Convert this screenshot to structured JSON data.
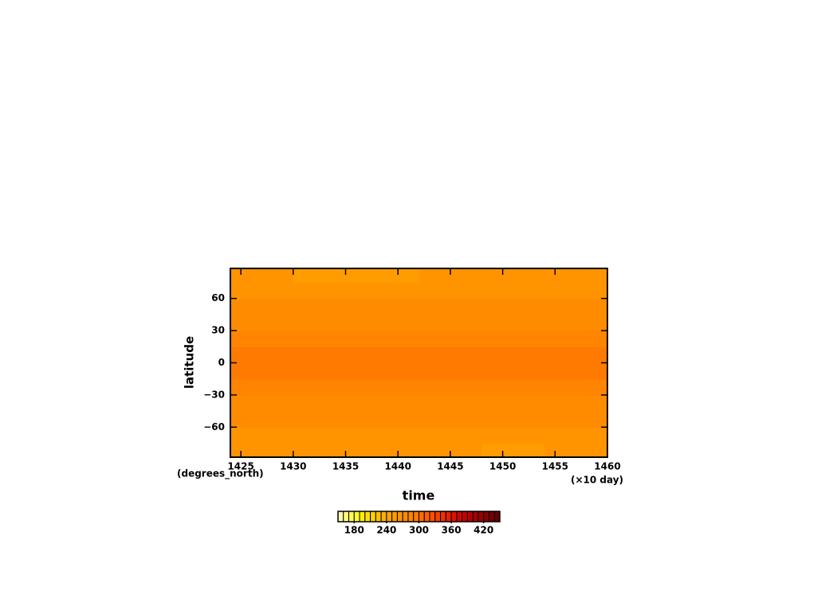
{
  "chart_data": {
    "type": "contour",
    "x_label": "time",
    "x_units": "(×10 day)",
    "y_label": "latitude",
    "y_units": "(degrees_north)",
    "xlim": [
      1424,
      1460
    ],
    "xticks": [
      1425,
      1430,
      1435,
      1440,
      1445,
      1450,
      1455,
      1460
    ],
    "ylim": [
      -88,
      88
    ],
    "yticks": [
      {
        "value": -60,
        "label": "−60"
      },
      {
        "value": -30,
        "label": "−30"
      },
      0,
      30,
      60
    ],
    "x": [
      1427,
      1433,
      1439,
      1445,
      1451,
      1457
    ],
    "y": [
      -82.5,
      -67.5,
      -52.5,
      -37.5,
      -22.5,
      -7.5,
      7.5,
      22.5,
      37.5,
      52.5,
      67.5,
      82.5
    ],
    "z": [
      [
        262,
        262,
        262,
        262,
        258,
        262
      ],
      [
        266,
        266,
        266,
        266,
        266,
        266
      ],
      [
        272,
        272,
        272,
        272,
        274,
        272
      ],
      [
        276,
        276,
        276,
        276,
        276,
        276
      ],
      [
        284,
        284,
        284,
        284,
        284,
        284
      ],
      [
        292,
        292,
        292,
        292,
        292,
        292
      ],
      [
        292,
        292,
        292,
        292,
        292,
        292
      ],
      [
        284,
        284,
        284,
        284,
        284,
        284
      ],
      [
        276,
        276,
        276,
        276,
        276,
        276
      ],
      [
        272,
        272,
        272,
        274,
        276,
        274
      ],
      [
        266,
        264,
        264,
        266,
        268,
        268
      ],
      [
        262,
        258,
        258,
        262,
        262,
        262
      ]
    ],
    "levels": [
      150,
      160,
      170,
      180,
      190,
      200,
      210,
      220,
      230,
      240,
      250,
      260,
      270,
      280,
      290,
      300,
      310,
      320,
      330,
      340,
      350,
      360,
      370,
      380,
      390,
      400,
      410,
      420,
      430,
      440,
      450
    ],
    "colors": [
      "#ffffb0",
      "#ffff80",
      "#ffff50",
      "#ffff20",
      "#fff000",
      "#ffe000",
      "#ffd000",
      "#ffc000",
      "#ffb000",
      "#ffa400",
      "#ff9c00",
      "#ff9400",
      "#ff8c00",
      "#ff8400",
      "#ff7a00",
      "#ff6c00",
      "#ff5e00",
      "#ff5000",
      "#f84000",
      "#f03000",
      "#e82000",
      "#e01000",
      "#d80000",
      "#c80000",
      "#b80000",
      "#a80000",
      "#980000",
      "#880000",
      "#780000",
      "#680000"
    ],
    "colorbar_ticks": [
      180,
      240,
      300,
      360,
      420
    ]
  }
}
